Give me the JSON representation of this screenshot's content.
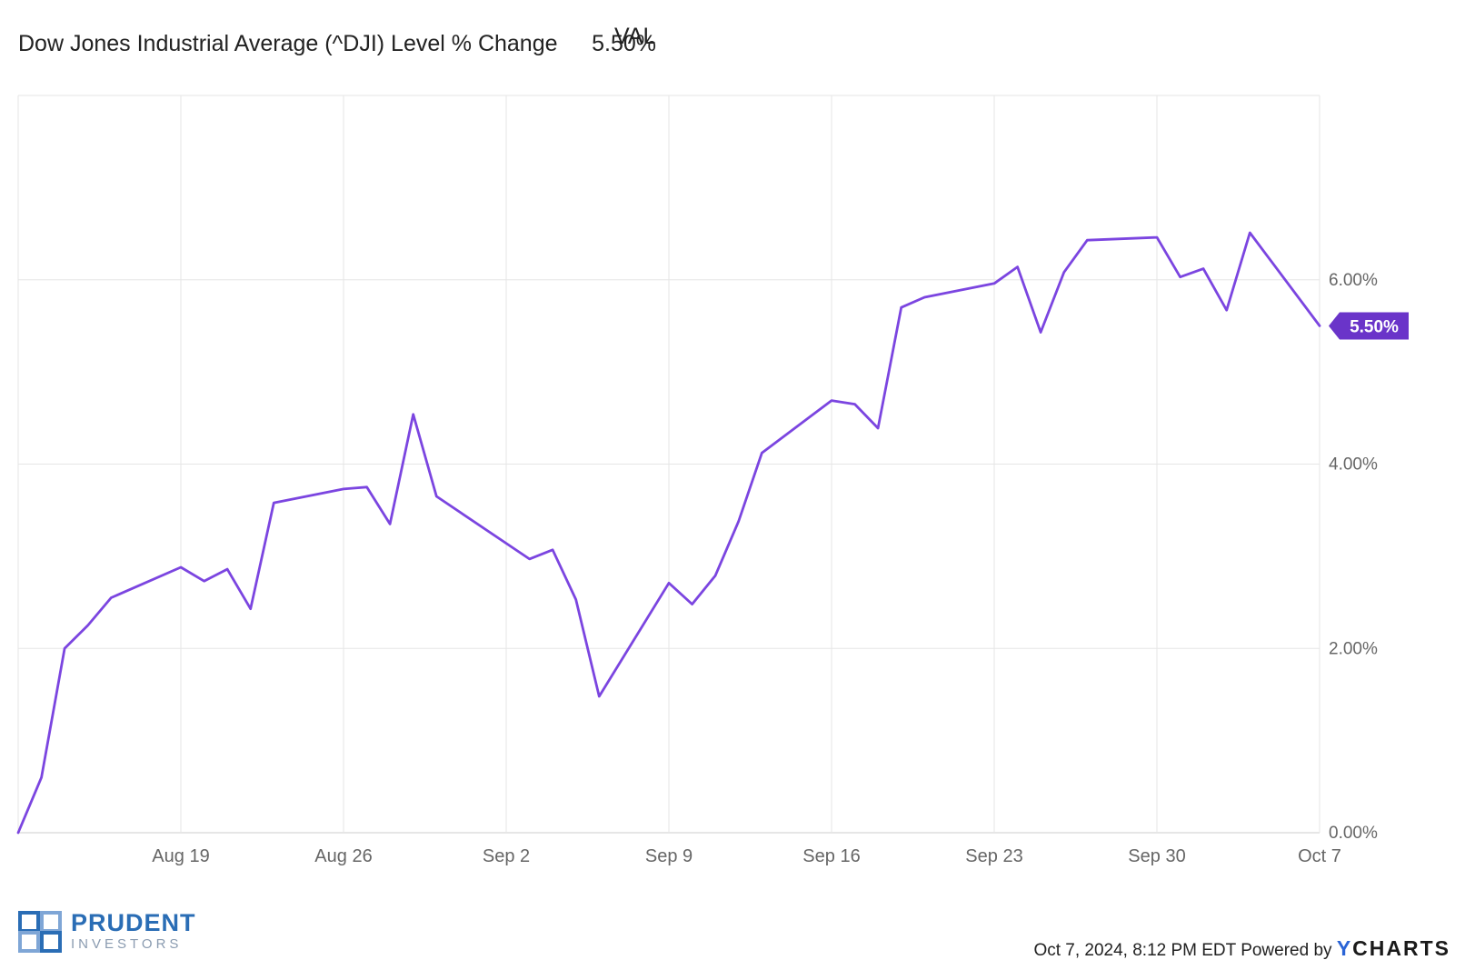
{
  "legend": {
    "column_header": "VAL",
    "series_name": "Dow Jones Industrial Average (^DJI) Level % Change",
    "series_value": "5.50%"
  },
  "colors": {
    "line": "#7b45e0",
    "badge": "#6a34c9",
    "grid": "#e6e6e6",
    "tick_text": "#666666"
  },
  "chart_data": {
    "type": "line",
    "series": [
      {
        "name": "Dow Jones Industrial Average (^DJI) Level % Change",
        "x": [
          "2024-08-12",
          "2024-08-13",
          "2024-08-14",
          "2024-08-15",
          "2024-08-16",
          "2024-08-19",
          "2024-08-20",
          "2024-08-21",
          "2024-08-22",
          "2024-08-23",
          "2024-08-26",
          "2024-08-27",
          "2024-08-28",
          "2024-08-29",
          "2024-08-30",
          "2024-09-03",
          "2024-09-04",
          "2024-09-05",
          "2024-09-06",
          "2024-09-09",
          "2024-09-10",
          "2024-09-11",
          "2024-09-12",
          "2024-09-13",
          "2024-09-16",
          "2024-09-17",
          "2024-09-18",
          "2024-09-19",
          "2024-09-20",
          "2024-09-23",
          "2024-09-24",
          "2024-09-25",
          "2024-09-26",
          "2024-09-27",
          "2024-09-30",
          "2024-10-01",
          "2024-10-02",
          "2024-10-03",
          "2024-10-04",
          "2024-10-07"
        ],
        "values": [
          0.0,
          0.6,
          2.0,
          2.25,
          2.55,
          2.88,
          2.73,
          2.86,
          2.43,
          3.58,
          3.73,
          3.75,
          3.35,
          4.54,
          3.65,
          2.97,
          3.07,
          2.53,
          1.48,
          2.71,
          2.48,
          2.79,
          3.38,
          4.12,
          4.69,
          4.65,
          4.39,
          5.7,
          5.81,
          5.96,
          6.14,
          5.43,
          6.08,
          6.43,
          6.46,
          6.03,
          6.12,
          5.67,
          6.51,
          5.5
        ]
      }
    ],
    "x_ticks": [
      "Aug 19",
      "Aug 26",
      "Sep 2",
      "Sep 9",
      "Sep 16",
      "Sep 23",
      "Sep 30",
      "Oct 7"
    ],
    "x_tick_dates": [
      "2024-08-19",
      "2024-08-26",
      "2024-09-02",
      "2024-09-09",
      "2024-09-16",
      "2024-09-23",
      "2024-09-30",
      "2024-10-07"
    ],
    "y_ticks": [
      "0.00%",
      "2.00%",
      "4.00%",
      "6.00%"
    ],
    "y_tick_values": [
      0,
      2,
      4,
      6
    ],
    "ylim": [
      0,
      8
    ],
    "xlim": [
      "2024-08-12",
      "2024-10-07"
    ],
    "grid": true,
    "last_value_label": "5.50%"
  },
  "logo": {
    "word": "PRUDENT",
    "sub": "INVESTORS"
  },
  "footer": {
    "timestamp": "Oct 7, 2024, 8:12 PM EDT Powered by",
    "brand_y": "Y",
    "brand_rest": "CHARTS"
  }
}
